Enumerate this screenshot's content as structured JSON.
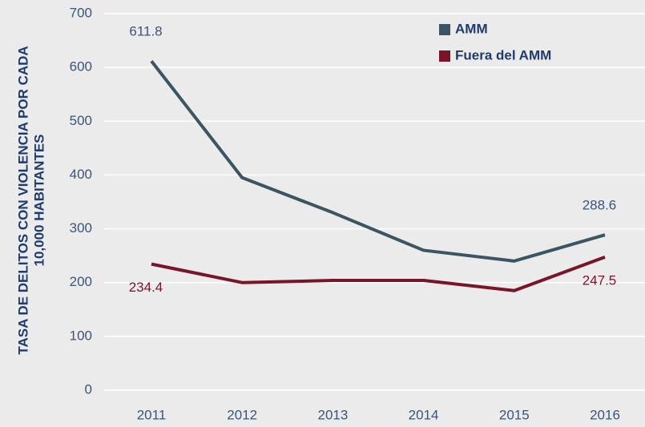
{
  "chart_data": {
    "type": "line",
    "ylabel": [
      "TASA DE DELITOS CON VIOLENCIA POR CADA",
      "10,000 HABITANTES"
    ],
    "categories": [
      "2011",
      "2012",
      "2013",
      "2014",
      "2015",
      "2016"
    ],
    "series": [
      {
        "name": "AMM",
        "color": "#3b5563",
        "values": [
          611.8,
          395,
          330,
          260,
          240,
          288.6
        ],
        "value_labels": [
          "611.8",
          null,
          null,
          null,
          null,
          "288.6"
        ]
      },
      {
        "name": "Fuera del AMM",
        "color": "#7a1428",
        "values": [
          234.4,
          200,
          204,
          204,
          185,
          247.5
        ],
        "value_labels": [
          "234.4",
          null,
          null,
          null,
          null,
          "247.5"
        ]
      }
    ],
    "ylim": [
      0,
      700
    ],
    "yticks": [
      0,
      100,
      200,
      300,
      400,
      500,
      600,
      700
    ],
    "grid": true,
    "legend": "upper right"
  }
}
